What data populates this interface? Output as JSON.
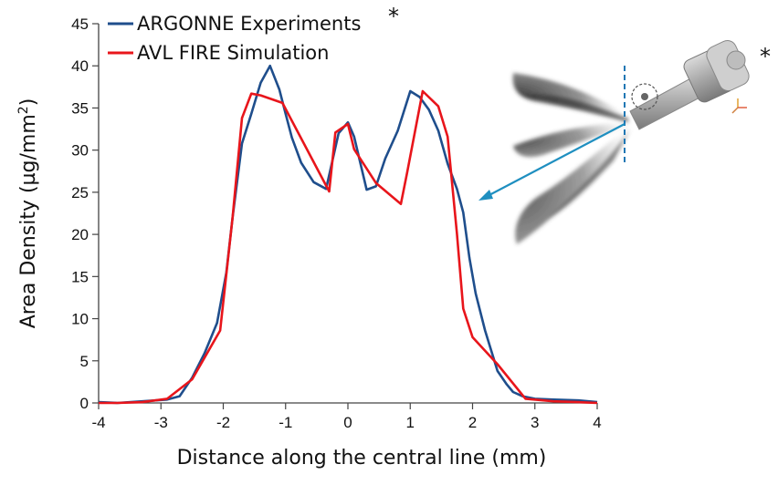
{
  "chart_data": {
    "type": "line",
    "xlabel": "Distance along the central line (mm)",
    "ylabel_main": "Area Density (µg/mm",
    "ylabel_sup": "2",
    "ylabel_close": ")",
    "xlim": [
      -4,
      4
    ],
    "ylim": [
      0,
      45
    ],
    "xticks": [
      "-4",
      "-3",
      "-2",
      "-1",
      "0",
      "1",
      "2",
      "3",
      "4"
    ],
    "yticks": [
      "0",
      "5",
      "10",
      "15",
      "20",
      "25",
      "30",
      "35",
      "40",
      "45"
    ],
    "grid": false,
    "legend_position": "top-left",
    "series": [
      {
        "name": "ARGONNE Experiments",
        "color": "#1f4e8c",
        "x": [
          -4.0,
          -3.7,
          -3.3,
          -2.9,
          -2.7,
          -2.5,
          -2.3,
          -2.1,
          -1.95,
          -1.85,
          -1.7,
          -1.55,
          -1.4,
          -1.25,
          -1.1,
          -1.0,
          -0.9,
          -0.75,
          -0.55,
          -0.35,
          -0.15,
          0.0,
          0.1,
          0.3,
          0.45,
          0.6,
          0.8,
          1.0,
          1.15,
          1.3,
          1.45,
          1.6,
          1.75,
          1.85,
          1.95,
          2.05,
          2.2,
          2.4,
          2.55,
          2.65,
          2.8,
          3.0,
          3.3,
          3.7,
          4.0
        ],
        "y": [
          0.1,
          0.0,
          0.2,
          0.4,
          0.8,
          3.0,
          5.9,
          9.5,
          15.5,
          22.0,
          30.8,
          34.3,
          38.0,
          40.0,
          37.2,
          34.3,
          31.5,
          28.5,
          26.2,
          25.4,
          32.0,
          33.3,
          31.6,
          25.3,
          25.7,
          29.0,
          32.3,
          37.0,
          36.3,
          34.8,
          32.3,
          28.4,
          25.4,
          22.6,
          17.2,
          13.0,
          8.6,
          3.8,
          2.2,
          1.3,
          0.8,
          0.5,
          0.4,
          0.3,
          0.1
        ]
      },
      {
        "name": "AVL FIRE Simulation",
        "color": "#e8151b",
        "x": [
          -4.0,
          -3.7,
          -3.3,
          -2.9,
          -2.5,
          -2.05,
          -1.85,
          -1.7,
          -1.55,
          -1.4,
          -1.05,
          -0.3,
          -0.2,
          0.0,
          0.1,
          0.45,
          0.85,
          0.95,
          1.2,
          1.45,
          1.6,
          1.75,
          1.85,
          2.0,
          2.4,
          2.85,
          3.3,
          3.7,
          4.0
        ],
        "y": [
          0.0,
          0.0,
          0.1,
          0.5,
          2.8,
          8.6,
          22.0,
          33.8,
          36.7,
          36.5,
          35.6,
          25.1,
          32.1,
          33.1,
          30.1,
          26.1,
          23.6,
          27.3,
          37.0,
          35.2,
          31.6,
          20.1,
          11.2,
          7.8,
          4.6,
          0.5,
          0.2,
          0.1,
          0.0
        ]
      }
    ],
    "annotations": [
      "*",
      "*"
    ],
    "inset": {
      "description_icon": "spray-injector-image"
    }
  }
}
